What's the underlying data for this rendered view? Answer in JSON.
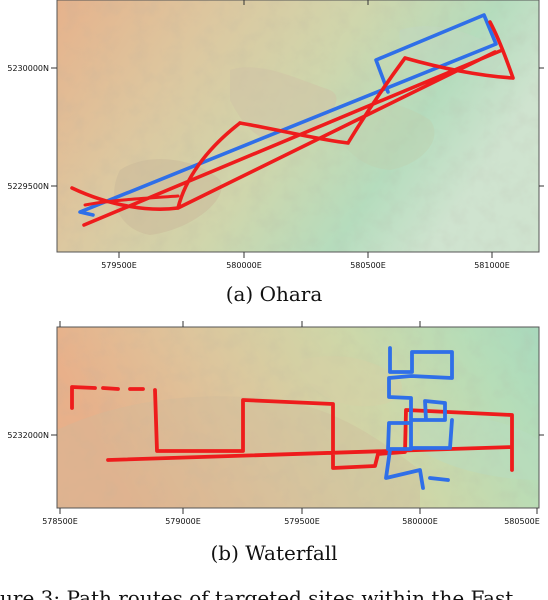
{
  "panel_a": {
    "caption": "(a) Ohara",
    "x_ticks": [
      "579500E",
      "580000E",
      "580500E",
      "581000E"
    ],
    "y_ticks": [
      "5230000N",
      "5229500N"
    ],
    "route_colors": {
      "red": "#ee1c1c",
      "blue": "#2f6fe8"
    },
    "terrain_colors": [
      "#e2b48e",
      "#d8d6a8",
      "#a8d8b4",
      "#cfe3cf"
    ]
  },
  "panel_b": {
    "caption": "(b) Waterfall",
    "x_ticks": [
      "578500E",
      "579000E",
      "579500E",
      "580000E",
      "580500E"
    ],
    "y_ticks": [
      "5232000N"
    ],
    "route_colors": {
      "red": "#ee1c1c",
      "blue": "#2f6fe8"
    },
    "terrain_colors": [
      "#e4b08a",
      "#d9d0a2",
      "#bfe0bc",
      "#a9d9bd"
    ]
  },
  "figure_caption_fragment": "ure 3: Path routes of targeted sites within the Fast"
}
